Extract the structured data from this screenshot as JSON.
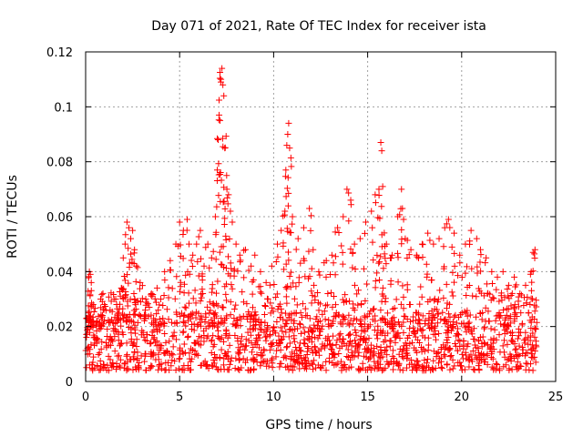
{
  "chart_data": {
    "type": "scatter",
    "title": "Day 071 of 2021, Rate Of TEC Index for receiver ista",
    "xlabel": "GPS time / hours",
    "ylabel": "ROTI / TECUs",
    "xlim": [
      0,
      25
    ],
    "ylim": [
      0,
      0.12
    ],
    "xticks": [
      0,
      5,
      10,
      15,
      20,
      25
    ],
    "xtick_labels": [
      "0",
      "5",
      "10",
      "15",
      "20",
      "25"
    ],
    "yticks": [
      0,
      0.02,
      0.04,
      0.06,
      0.08,
      0.1,
      0.12
    ],
    "ytick_labels": [
      "0",
      "0.02",
      "0.04",
      "0.06",
      "0.08",
      "0.1",
      "0.12"
    ],
    "grid": true,
    "marker": "+",
    "color": "#ff0000",
    "series": [
      {
        "name": "ROTI",
        "dense_band": {
          "x_range": [
            0,
            24
          ],
          "typical_range": [
            0.004,
            0.025
          ]
        },
        "points": [
          [
            0.1,
            0.012
          ],
          [
            0.15,
            0.025
          ],
          [
            0.2,
            0.04
          ],
          [
            0.25,
            0.039
          ],
          [
            0.3,
            0.036
          ],
          [
            0.4,
            0.028
          ],
          [
            0.6,
            0.022
          ],
          [
            0.8,
            0.03
          ],
          [
            1.0,
            0.028
          ],
          [
            1.3,
            0.026
          ],
          [
            1.6,
            0.03
          ],
          [
            1.9,
            0.034
          ],
          [
            2.0,
            0.045
          ],
          [
            2.1,
            0.05
          ],
          [
            2.2,
            0.058
          ],
          [
            2.3,
            0.056
          ],
          [
            2.4,
            0.052
          ],
          [
            2.5,
            0.055
          ],
          [
            2.6,
            0.048
          ],
          [
            2.7,
            0.042
          ],
          [
            2.9,
            0.036
          ],
          [
            3.2,
            0.03
          ],
          [
            3.5,
            0.032
          ],
          [
            3.8,
            0.034
          ],
          [
            4.0,
            0.03
          ],
          [
            4.2,
            0.04
          ],
          [
            4.5,
            0.044
          ],
          [
            4.8,
            0.05
          ],
          [
            5.0,
            0.058
          ],
          [
            5.2,
            0.055
          ],
          [
            5.4,
            0.059
          ],
          [
            5.5,
            0.05
          ],
          [
            5.7,
            0.046
          ],
          [
            5.9,
            0.05
          ],
          [
            6.1,
            0.055
          ],
          [
            6.3,
            0.042
          ],
          [
            6.5,
            0.05
          ],
          [
            6.7,
            0.045
          ],
          [
            6.9,
            0.06
          ],
          [
            7.0,
            0.077
          ],
          [
            7.05,
            0.088
          ],
          [
            7.1,
            0.097
          ],
          [
            7.15,
            0.095
          ],
          [
            7.2,
            0.11
          ],
          [
            7.25,
            0.114
          ],
          [
            7.3,
            0.108
          ],
          [
            7.35,
            0.104
          ],
          [
            7.4,
            0.085
          ],
          [
            7.5,
            0.075
          ],
          [
            7.6,
            0.068
          ],
          [
            7.7,
            0.062
          ],
          [
            7.8,
            0.058
          ],
          [
            8.0,
            0.05
          ],
          [
            8.2,
            0.046
          ],
          [
            8.5,
            0.048
          ],
          [
            8.8,
            0.042
          ],
          [
            9.0,
            0.046
          ],
          [
            9.3,
            0.04
          ],
          [
            9.6,
            0.036
          ],
          [
            9.9,
            0.042
          ],
          [
            10.2,
            0.05
          ],
          [
            10.4,
            0.055
          ],
          [
            10.6,
            0.062
          ],
          [
            10.65,
            0.077
          ],
          [
            10.7,
            0.086
          ],
          [
            10.75,
            0.09
          ],
          [
            10.8,
            0.094
          ],
          [
            10.85,
            0.085
          ],
          [
            11.0,
            0.06
          ],
          [
            11.3,
            0.052
          ],
          [
            11.6,
            0.056
          ],
          [
            11.9,
            0.063
          ],
          [
            12.1,
            0.048
          ],
          [
            12.4,
            0.04
          ],
          [
            12.8,
            0.044
          ],
          [
            13.1,
            0.046
          ],
          [
            13.4,
            0.056
          ],
          [
            13.7,
            0.06
          ],
          [
            13.9,
            0.07
          ],
          [
            14.1,
            0.066
          ],
          [
            14.3,
            0.05
          ],
          [
            14.6,
            0.052
          ],
          [
            14.9,
            0.058
          ],
          [
            15.2,
            0.062
          ],
          [
            15.4,
            0.068
          ],
          [
            15.6,
            0.07
          ],
          [
            15.7,
            0.087
          ],
          [
            15.75,
            0.084
          ],
          [
            15.8,
            0.071
          ],
          [
            16.0,
            0.05
          ],
          [
            16.3,
            0.046
          ],
          [
            16.6,
            0.06
          ],
          [
            16.8,
            0.07
          ],
          [
            16.85,
            0.063
          ],
          [
            17.0,
            0.052
          ],
          [
            17.3,
            0.048
          ],
          [
            17.6,
            0.046
          ],
          [
            17.9,
            0.05
          ],
          [
            18.2,
            0.054
          ],
          [
            18.5,
            0.05
          ],
          [
            18.8,
            0.052
          ],
          [
            19.1,
            0.056
          ],
          [
            19.3,
            0.059
          ],
          [
            19.6,
            0.054
          ],
          [
            19.9,
            0.046
          ],
          [
            20.2,
            0.05
          ],
          [
            20.5,
            0.055
          ],
          [
            20.8,
            0.052
          ],
          [
            21.0,
            0.048
          ],
          [
            21.3,
            0.045
          ],
          [
            21.6,
            0.04
          ],
          [
            21.9,
            0.038
          ],
          [
            22.2,
            0.04
          ],
          [
            22.5,
            0.035
          ],
          [
            22.8,
            0.038
          ],
          [
            23.1,
            0.032
          ],
          [
            23.4,
            0.035
          ],
          [
            23.7,
            0.04
          ],
          [
            23.8,
            0.047
          ],
          [
            23.9,
            0.048
          ]
        ]
      }
    ]
  }
}
